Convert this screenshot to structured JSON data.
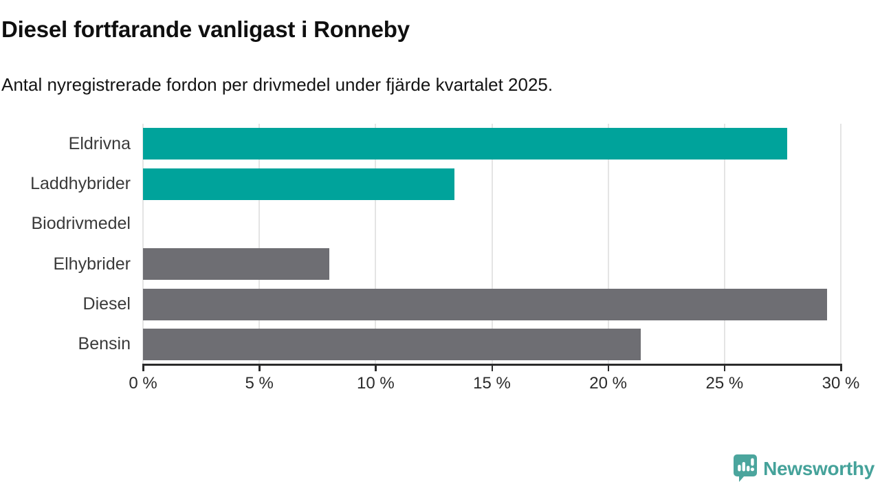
{
  "header": {
    "title": "Diesel fortfarande vanligast i Ronneby",
    "subtitle": "Antal nyregistrerade fordon per drivmedel under fjärde kvartalet 2025."
  },
  "chart_data": {
    "type": "bar",
    "orientation": "horizontal",
    "title": "Diesel fortfarande vanligast i Ronneby",
    "xlabel": "",
    "ylabel": "",
    "unit": "%",
    "categories": [
      "Eldrivna",
      "Laddhybrider",
      "Biodrivmedel",
      "Elhybrider",
      "Diesel",
      "Bensin"
    ],
    "values": [
      27.7,
      13.4,
      0,
      8.0,
      29.4,
      21.4
    ],
    "bar_colors": [
      "#00a39b",
      "#00a39b",
      "#00a39b",
      "#6e6e73",
      "#6e6e73",
      "#6e6e73"
    ],
    "xlim": [
      0,
      30
    ],
    "x_ticks": [
      0,
      5,
      10,
      15,
      20,
      25,
      30
    ],
    "x_tick_labels": [
      "0 %",
      "5 %",
      "10 %",
      "15 %",
      "20 %",
      "25 %",
      "30 %"
    ],
    "grid": "vertical-only",
    "legend": "none"
  },
  "footer": {
    "brand": "Newsworthy",
    "brand_color": "#45a29a"
  },
  "colors": {
    "accent_teal": "#00a39b",
    "neutral_gray": "#6e6e73",
    "gridline": "#e4e4e4",
    "axis": "#2b2b2b",
    "title_text": "#0f0f0f",
    "label_text": "#3a3a3a"
  }
}
